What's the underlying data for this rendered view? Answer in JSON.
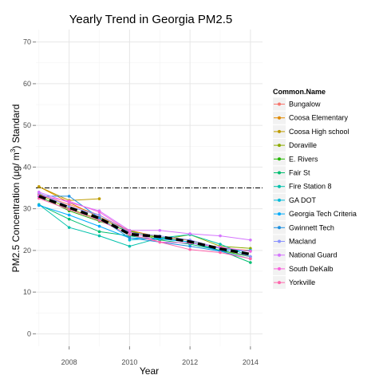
{
  "chart_data": {
    "type": "line",
    "title": "Yearly Trend in Georgia PM2.5",
    "xlabel": "Year",
    "ylabel": "PM2.5 Concentration (μg/ m³ ) Standard",
    "ylabel_parts": {
      "pre": "PM2.5 Concentration (",
      "mu": "μ",
      "mid": "g/ m",
      "sup": "3",
      "post": ") Standard"
    },
    "x_ticks": [
      2008,
      2010,
      2012,
      2014
    ],
    "y_ticks": [
      0,
      10,
      20,
      30,
      40,
      50,
      60,
      70
    ],
    "xlim": [
      2006.9,
      2014.4
    ],
    "ylim": [
      -3,
      73
    ],
    "grid": true,
    "legend_title": "Common.Name",
    "legend_position": "right",
    "standard_line": {
      "value": 35,
      "style": "dash-dot"
    },
    "average_line": {
      "style": "bold-dashed",
      "points": [
        [
          2007,
          33
        ],
        [
          2008,
          30.3
        ],
        [
          2009,
          27.7
        ],
        [
          2010,
          23.9
        ],
        [
          2011,
          23.3
        ],
        [
          2012,
          22.1
        ],
        [
          2013,
          20.4
        ],
        [
          2014,
          19.1
        ]
      ]
    },
    "series": [
      {
        "name": "Bungalow",
        "color": "#F8766D",
        "points": [
          [
            2007,
            33.5
          ],
          [
            2008,
            31
          ],
          [
            2009,
            28.5
          ],
          [
            2010,
            24.5
          ]
        ]
      },
      {
        "name": "Coosa Elementary",
        "color": "#E18A00",
        "points": [
          [
            2007,
            35.3
          ],
          [
            2008,
            31.5
          ],
          [
            2009,
            28
          ],
          [
            2010,
            24.8
          ],
          [
            2011,
            23.2
          ],
          [
            2012,
            22.4
          ],
          [
            2013,
            20.5
          ],
          [
            2014,
            20
          ]
        ]
      },
      {
        "name": "Coosa High school",
        "color": "#BE9C00",
        "points": [
          [
            2007,
            35.3
          ],
          [
            2008,
            32
          ],
          [
            2009,
            32.4
          ]
        ]
      },
      {
        "name": "Doraville",
        "color": "#8CAB00",
        "points": [
          [
            2007,
            33.5
          ],
          [
            2008,
            30
          ],
          [
            2009,
            27.5
          ],
          [
            2010,
            24.8
          ],
          [
            2011,
            22.5
          ],
          [
            2012,
            23.8
          ],
          [
            2013,
            21
          ],
          [
            2014,
            20.5
          ]
        ]
      },
      {
        "name": "E. Rivers",
        "color": "#24B700",
        "points": [
          [
            2007,
            33
          ],
          [
            2008,
            29.5
          ],
          [
            2009,
            27
          ],
          [
            2010,
            24.5
          ],
          [
            2011,
            23
          ],
          [
            2012,
            22
          ],
          [
            2013,
            20
          ],
          [
            2014,
            18.5
          ]
        ]
      },
      {
        "name": "Fair St",
        "color": "#00BE70",
        "points": [
          [
            2007,
            31
          ],
          [
            2008,
            27.5
          ],
          [
            2009,
            24.5
          ],
          [
            2010,
            23.5
          ],
          [
            2011,
            22.5
          ],
          [
            2012,
            21.5
          ],
          [
            2013,
            20
          ],
          [
            2014,
            17.1
          ]
        ]
      },
      {
        "name": "Fire Station 8",
        "color": "#00C1AB",
        "points": [
          [
            2007,
            31
          ],
          [
            2008,
            25.5
          ],
          [
            2009,
            23.5
          ],
          [
            2010,
            21
          ],
          [
            2011,
            23
          ],
          [
            2012,
            23.8
          ],
          [
            2013,
            21.5
          ],
          [
            2014,
            18.5
          ]
        ]
      },
      {
        "name": "GA DOT",
        "color": "#00BBDA",
        "points": [
          [
            2010,
            22.5
          ],
          [
            2011,
            23
          ],
          [
            2012,
            22
          ],
          [
            2013,
            20.5
          ],
          [
            2014,
            19.8
          ]
        ]
      },
      {
        "name": "Georgia Tech Criteria",
        "color": "#00ACFC",
        "points": [
          [
            2007,
            30.8
          ],
          [
            2008,
            28.5
          ],
          [
            2009,
            25.8
          ],
          [
            2010,
            23
          ],
          [
            2011,
            22.8
          ],
          [
            2012,
            22
          ],
          [
            2013,
            19.8
          ],
          [
            2014,
            20
          ]
        ]
      },
      {
        "name": "Gwinnett Tech",
        "color": "#1E90E0",
        "points": [
          [
            2007,
            33
          ],
          [
            2008,
            33
          ],
          [
            2009,
            27.8
          ],
          [
            2010,
            23
          ],
          [
            2011,
            22
          ],
          [
            2012,
            21
          ],
          [
            2013,
            19.8
          ],
          [
            2014,
            18
          ]
        ]
      },
      {
        "name": "Macland",
        "color": "#8B93FF",
        "points": [
          [
            2007,
            33.8
          ],
          [
            2008,
            30.5
          ],
          [
            2009,
            28.5
          ],
          [
            2010,
            24.3
          ],
          [
            2011,
            23.5
          ],
          [
            2012,
            22.5
          ],
          [
            2013,
            20.5
          ],
          [
            2014,
            18.5
          ]
        ]
      },
      {
        "name": "National Guard",
        "color": "#D575FE",
        "points": [
          [
            2007,
            34
          ],
          [
            2008,
            31.5
          ],
          [
            2009,
            29.5
          ],
          [
            2010,
            24.8
          ],
          [
            2011,
            24.8
          ],
          [
            2012,
            24
          ],
          [
            2013,
            23.5
          ],
          [
            2014,
            22.5
          ]
        ]
      },
      {
        "name": "South DeKalb",
        "color": "#F962DD",
        "points": [
          [
            2007,
            33.2
          ],
          [
            2008,
            31.8
          ],
          [
            2009,
            29.2
          ],
          [
            2010,
            24.5
          ],
          [
            2011,
            22
          ],
          [
            2012,
            21.8
          ],
          [
            2013,
            20.8
          ],
          [
            2014,
            19.8
          ]
        ]
      },
      {
        "name": "Yorkville",
        "color": "#FF65AC",
        "points": [
          [
            2007,
            32.5
          ],
          [
            2008,
            29.8
          ],
          [
            2009,
            27.2
          ],
          [
            2010,
            23.8
          ],
          [
            2011,
            22
          ],
          [
            2012,
            20.2
          ],
          [
            2013,
            19.5
          ],
          [
            2014,
            18
          ]
        ]
      }
    ]
  }
}
